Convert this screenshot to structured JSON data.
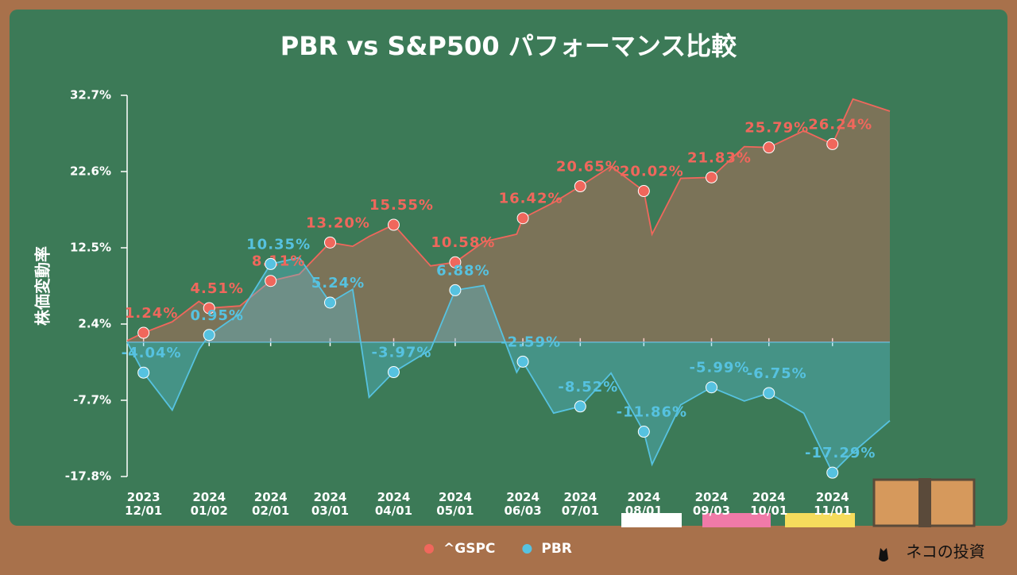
{
  "chart_data": {
    "type": "area",
    "title": "PBR vs S&P500 パフォーマンス比較",
    "y_label": "株価変動率",
    "footer": "ネコの投資",
    "x": [
      "2023-11-23",
      "2023-12-01",
      "2023-12-15",
      "2023-12-28",
      "2024-01-02",
      "2024-01-17",
      "2024-02-01",
      "2024-02-15",
      "2024-03-01",
      "2024-03-12",
      "2024-03-20",
      "2024-04-01",
      "2024-04-19",
      "2024-05-01",
      "2024-05-15",
      "2024-05-31",
      "2024-06-03",
      "2024-06-18",
      "2024-07-01",
      "2024-07-16",
      "2024-08-01",
      "2024-08-05",
      "2024-08-19",
      "2024-09-03",
      "2024-09-19",
      "2024-10-01",
      "2024-10-18",
      "2024-11-01",
      "2024-11-11",
      "2024-11-29"
    ],
    "xlim": [
      "2023-11-23",
      "2024-11-29"
    ],
    "xticks": [
      {
        "value": "2023-12-01",
        "label": [
          "2023",
          "12/01"
        ]
      },
      {
        "value": "2024-01-02",
        "label": [
          "2024",
          "01/02"
        ]
      },
      {
        "value": "2024-02-01",
        "label": [
          "2024",
          "02/01"
        ]
      },
      {
        "value": "2024-03-01",
        "label": [
          "2024",
          "03/01"
        ]
      },
      {
        "value": "2024-04-01",
        "label": [
          "2024",
          "04/01"
        ]
      },
      {
        "value": "2024-05-01",
        "label": [
          "2024",
          "05/01"
        ]
      },
      {
        "value": "2024-06-03",
        "label": [
          "2024",
          "06/03"
        ]
      },
      {
        "value": "2024-07-01",
        "label": [
          "2024",
          "07/01"
        ]
      },
      {
        "value": "2024-08-01",
        "label": [
          "2024",
          "08/01"
        ]
      },
      {
        "value": "2024-09-03",
        "label": [
          "2024",
          "09/03"
        ]
      },
      {
        "value": "2024-10-01",
        "label": [
          "2024",
          "10/01"
        ]
      },
      {
        "value": "2024-11-01",
        "label": [
          "2024",
          "11/01"
        ]
      }
    ],
    "ylim": [
      -17.8,
      32.7
    ],
    "yticks": [
      {
        "value": -17.8,
        "label": "-17.8%"
      },
      {
        "value": -7.7,
        "label": "-7.7%"
      },
      {
        "value": 2.4,
        "label": "2.4%"
      },
      {
        "value": 12.5,
        "label": "12.5%"
      },
      {
        "value": 22.6,
        "label": "22.6%"
      },
      {
        "value": 32.7,
        "label": "32.7%"
      }
    ],
    "series": [
      {
        "name": "^GSPC",
        "color": "#f0675c",
        "values": [
          0.2,
          1.24,
          2.7,
          5.4,
          4.51,
          4.8,
          8.11,
          9.0,
          13.2,
          12.7,
          14.0,
          15.55,
          10.1,
          10.58,
          13.3,
          14.3,
          16.42,
          18.5,
          20.65,
          23.3,
          20.02,
          14.3,
          21.7,
          21.83,
          25.9,
          25.79,
          28.0,
          26.24,
          32.2,
          30.6
        ],
        "value_labels": [
          null,
          "1.24%",
          null,
          null,
          "4.51%",
          null,
          "8.11%",
          null,
          "13.20%",
          null,
          null,
          "15.55%",
          null,
          "10.58%",
          null,
          null,
          "16.42%",
          null,
          "20.65%",
          null,
          "20.02%",
          null,
          null,
          "21.83%",
          null,
          "25.79%",
          null,
          "26.24%",
          null,
          null
        ]
      },
      {
        "name": "PBR",
        "color": "#56c2e0",
        "values": [
          0,
          -4.04,
          -9.0,
          -1.0,
          0.95,
          3.8,
          10.35,
          11.2,
          5.24,
          7.0,
          -7.3,
          -3.97,
          -1.0,
          6.88,
          7.5,
          -4.0,
          -2.59,
          -9.4,
          -8.52,
          -4.1,
          -11.86,
          -16.2,
          -8.3,
          -5.99,
          -7.8,
          -6.75,
          -9.4,
          -17.29,
          -14.6,
          -10.4
        ],
        "value_labels": [
          null,
          "-4.04%",
          null,
          null,
          "0.95%",
          null,
          "10.35%",
          null,
          "5.24%",
          null,
          null,
          "-3.97%",
          null,
          "6.88%",
          null,
          null,
          "-2.59%",
          null,
          "-8.52%",
          null,
          "-11.86%",
          null,
          null,
          "-5.99%",
          null,
          "-6.75%",
          null,
          "-17.29%",
          null,
          null
        ]
      }
    ]
  }
}
